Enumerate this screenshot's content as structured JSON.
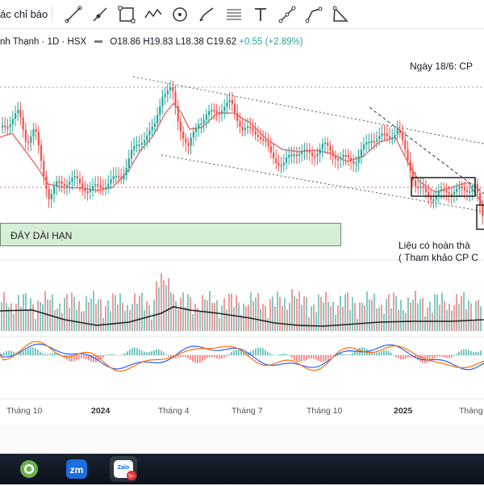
{
  "toolbar": {
    "indicators_label": "ác chỉ báo",
    "tools": [
      "line-tool-icon",
      "ray-tool-icon",
      "rectangle-tool-icon",
      "wave-tool-icon",
      "circle-tool-icon",
      "brush-tool-icon",
      "fib-lines-icon",
      "text-tool-icon",
      "path-tool-icon",
      "curve-tool-icon",
      "triangle-tool-icon"
    ]
  },
  "legend": {
    "symbol": "nh Thạnh · 1D · HSX",
    "open": "O18.86",
    "high": "H19.83",
    "low": "L18.38",
    "close": "C19.62",
    "change": "+0.55 (+2.89%)"
  },
  "annotations": {
    "top_note": "Ngày 18/6: CP",
    "support_label": "ĐÁY DÀI HẠN",
    "question_line1": "Liệu có hoàn thà",
    "question_line2": "( Tham khảo CP C"
  },
  "time_axis": [
    "Tháng 10",
    "2024",
    "Tháng 4",
    "Tháng 7",
    "Tháng 10",
    "2025",
    "Tháng"
  ],
  "colors": {
    "ma": "#e57373",
    "up": "#26a69a",
    "down": "#ef5350",
    "volume_ma": "#222222",
    "macd": "#2962ff",
    "signal": "#ff6d00",
    "support_fill": "#d7eed6"
  },
  "taskbar": {
    "apps": [
      "coccoc-icon",
      "zoom-icon",
      "zalo-icon"
    ],
    "zoom_label": "zm",
    "zalo_label": "Zalo",
    "zalo_badge": "5+"
  }
}
